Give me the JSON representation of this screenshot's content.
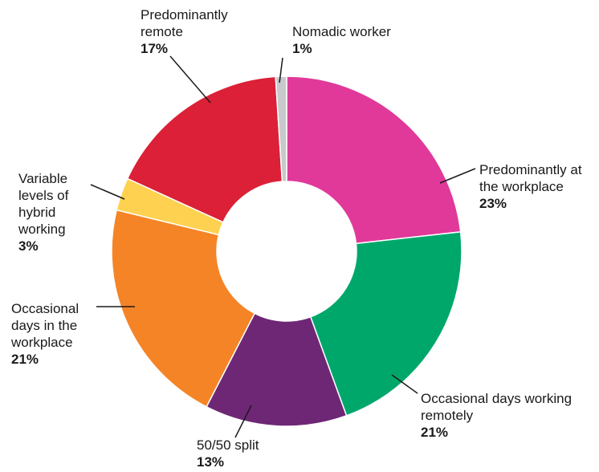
{
  "chart_data": {
    "type": "donut",
    "categories": [
      "Predominantly at the workplace",
      "Occasional days working remotely",
      "50/50 split",
      "Occasional days in the workplace",
      "Variable levels of hybrid working",
      "Predominantly remote",
      "Nomadic worker"
    ],
    "values": [
      23,
      21,
      13,
      21,
      3,
      17,
      1
    ],
    "value_labels": [
      "23%",
      "21%",
      "13%",
      "21%",
      "3%",
      "17%",
      "1%"
    ],
    "colors": [
      "#e0399a",
      "#00a76b",
      "#6e2775",
      "#f58426",
      "#fed250",
      "#db2037",
      "#c8c9cb"
    ]
  }
}
